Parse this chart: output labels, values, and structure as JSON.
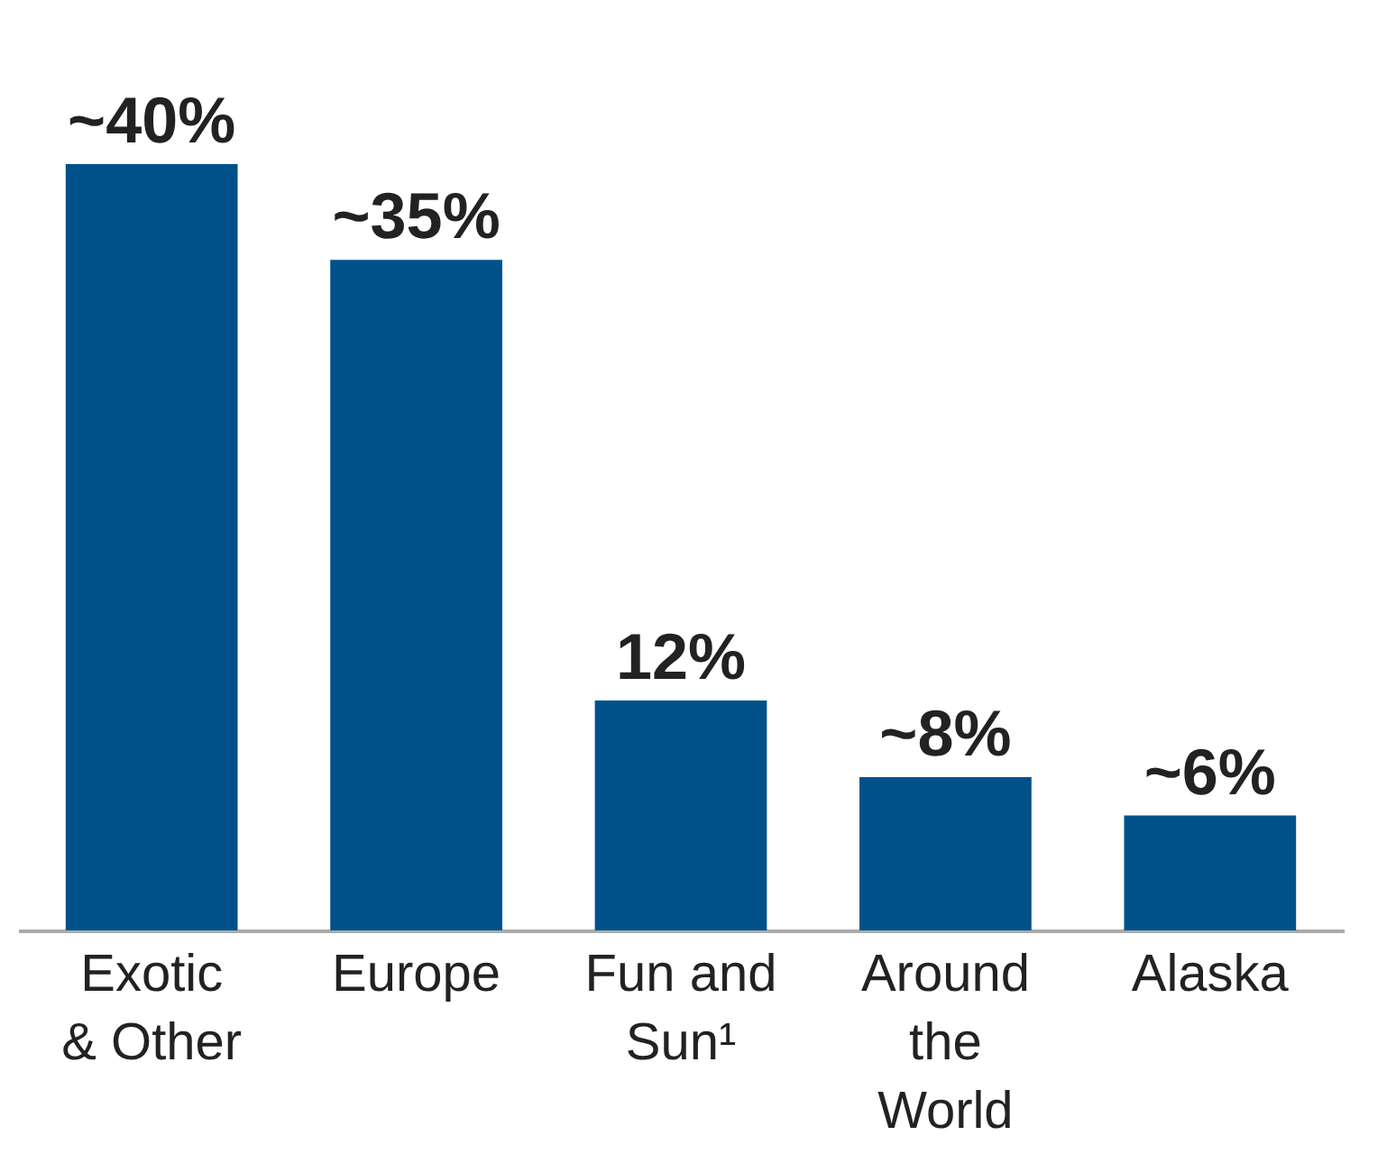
{
  "chart_data": {
    "type": "bar",
    "categories": [
      "Exotic\n& Other",
      "Europe",
      "Fun and\nSun¹",
      "Around\nthe\nWorld",
      "Alaska"
    ],
    "values": [
      40,
      35,
      12,
      8,
      6
    ],
    "color": "#00518a",
    "value_labels": [
      "~40%",
      "~35%",
      "12%",
      "~8%",
      "~6%"
    ],
    "grid": false
  }
}
